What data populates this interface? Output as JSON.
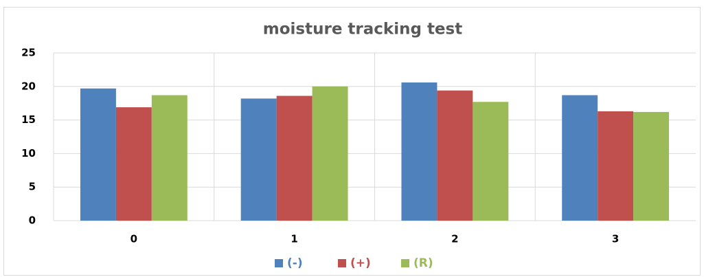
{
  "chart_data": {
    "type": "bar",
    "title": "moisture tracking test",
    "categories": [
      "0",
      "1",
      "2",
      "3"
    ],
    "series": [
      {
        "name": "(-)",
        "color": "#4f81bd",
        "values": [
          19.7,
          18.2,
          20.6,
          18.7
        ]
      },
      {
        "name": "(+)",
        "color": "#c0504d",
        "values": [
          16.9,
          18.6,
          19.4,
          16.3
        ]
      },
      {
        "name": "(R)",
        "color": "#9bbb59",
        "values": [
          18.7,
          20.0,
          17.7,
          16.2
        ]
      }
    ],
    "ylim": [
      0,
      25
    ],
    "yticks": [
      0,
      5,
      10,
      15,
      20,
      25
    ],
    "grid": true,
    "legend": "bottom"
  }
}
